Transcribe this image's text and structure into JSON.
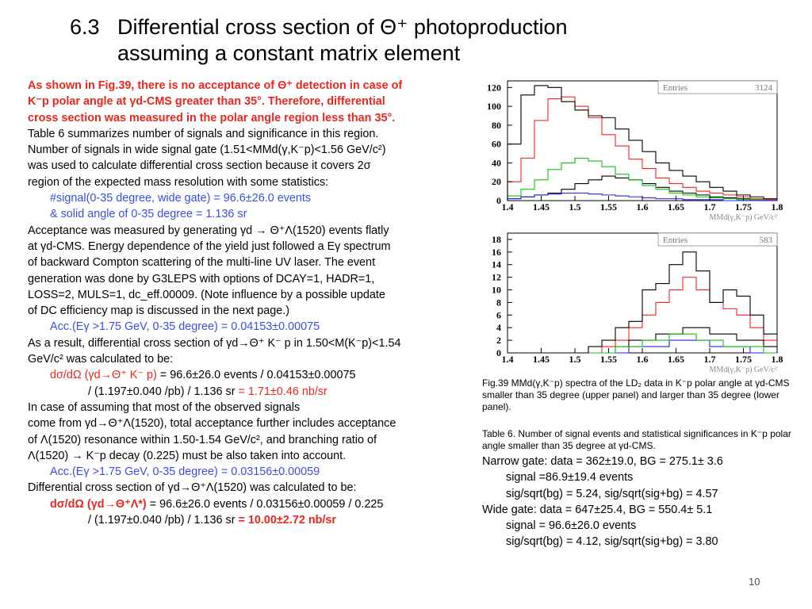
{
  "title": {
    "number": "6.3",
    "line1": "Differential cross section of Θ⁺ photoproduction",
    "line2": "assuming a constant matrix element"
  },
  "body": {
    "intro_red": [
      "As shown in Fig.39, there is no acceptance of Θ⁺ detection in case of",
      "K⁻p polar angle at γd-CMS greater than 35°. Therefore, differential",
      "cross section was measured in the polar angle region less than 35°."
    ],
    "para1": [
      "Table 6 summarizes number of signals and significance in this region.",
      "Number of signals in wide signal gate (1.51<MMd(γ,K⁻p)<1.56 GeV/c²)",
      "was used to calculate differential cross section because it covers 2σ",
      "region of the expected mass resolution with some statistics:"
    ],
    "signal_line": "#signal(0-35 degree, wide gate) = 96.6±26.0 events",
    "solid_angle_line": "& solid angle of 0-35 degree = 1.136 sr",
    "para2": [
      "Acceptance was measured by generating γd → Θ⁺Λ(1520) events flatly",
      "at γd-CMS. Energy dependence of the yield just followed  a Eγ spectrum",
      "of backward Compton scattering of the multi-line UV laser. The event",
      "generation was done by G3LEPS with options of DCAY=1, HADR=1,",
      "LOSS=2, MULS=1, dc_eff.00009. (Note influence by a possible update",
      "of DC efficiency map is discussed in the next page.)"
    ],
    "acc1": "Acc.(Eγ >1.75 GeV, 0-35 degree) = 0.04153±0.00075",
    "para3": [
      "As a result, differential cross section of γd→Θ⁺ K⁻ p in 1.50<M(K⁻p)<1.54",
      "GeV/c² was calculated to be:"
    ],
    "xs1_label": "dσ/dΩ (γd→Θ⁺ K⁻ p)",
    "xs1_mid": " = 96.6±26.0 events / 0.04153±0.00075",
    "xs1_line2": "/ (1.197±0.040 /pb) / 1.136 sr ",
    "xs1_result": "= 1.71±0.46 nb/sr",
    "para4": [
      "In case of assuming that most of the observed signals",
      "come from  γd→Θ⁺Λ(1520), total acceptance further includes acceptance",
      "of Λ(1520) resonance within 1.50-1.54 GeV/c², and branching ratio of",
      "Λ(1520) → K⁻p decay (0.225) must be also taken into account."
    ],
    "acc2": "Acc.(Eγ >1.75 GeV, 0-35 degree) = 0.03156±0.00059",
    "para5": "Differential cross section of γd→Θ⁺Λ(1520) was calculated to be:",
    "xs2_label": "dσ/dΩ (γd→Θ⁺Λ*)",
    "xs2_mid": " = 96.6±26.0 events / 0.03156±0.00059 / 0.225",
    "xs2_line2": "/ (1.197±0.040 /pb) / 1.136 sr ",
    "xs2_result": "= 10.00±2.72 nb/sr"
  },
  "figure_caption": "Fig.39 MMd(γ,K⁻p) spectra of the LD₂ data in K⁻p polar angle at γd-CMS smaller than 35 degree (upper panel) and larger than 35 degree (lower panel).",
  "table6": {
    "caption": "Table 6. Number of signal events and statistical significances in K⁻p polar angle smaller than 35 degree at γd-CMS.",
    "narrow": "Narrow gate: data = 362±19.0,  BG = 275.1± 3.6",
    "narrow_signal": "signal =86.9±19.4 events",
    "narrow_sig": "sig/sqrt(bg) = 5.24,  sig/sqrt(sig+bg) = 4.57",
    "wide": "Wide gate:    data = 647±25.4,  BG = 550.4± 5.1",
    "wide_signal": "signal = 96.6±26.0 events",
    "wide_sig": "sig/sqrt(bg) = 4.12,  sig/sqrt(sig+bg) = 3.80"
  },
  "page_number": "10",
  "colors": {
    "red": "#e8281e",
    "blue": "#3a4fe0",
    "green": "#10c010",
    "hist_red": "#ff2020",
    "hist_blue": "#2020ff"
  },
  "chart_data": [
    {
      "type": "line",
      "stats_label": "Entries",
      "entries": "3124",
      "xlabel": "MMd(γ,K⁻p) GeV/c²",
      "xlim": [
        1.4,
        1.8
      ],
      "ylim": [
        0,
        127
      ],
      "x_ticks": [
        "1.4",
        "1.45",
        "1.5",
        "1.55",
        "1.6",
        "1.65",
        "1.7",
        "1.75",
        "1.8"
      ],
      "y_ticks": [
        "0",
        "20",
        "40",
        "60",
        "80",
        "100",
        "120"
      ],
      "x": [
        1.41,
        1.43,
        1.45,
        1.47,
        1.49,
        1.51,
        1.53,
        1.55,
        1.57,
        1.59,
        1.61,
        1.63,
        1.65,
        1.67,
        1.69,
        1.71,
        1.73,
        1.75,
        1.77,
        1.79
      ],
      "series": [
        {
          "color": "black",
          "values": [
            2,
            4,
            6,
            8,
            12,
            18,
            22,
            26,
            24,
            22,
            18,
            14,
            10,
            8,
            6,
            4,
            3,
            2,
            1,
            1
          ]
        },
        {
          "color": "red",
          "values": [
            20,
            45,
            85,
            108,
            110,
            100,
            88,
            70,
            58,
            44,
            34,
            24,
            18,
            14,
            10,
            8,
            6,
            4,
            2,
            1
          ]
        },
        {
          "color": "green",
          "values": [
            5,
            12,
            22,
            33,
            40,
            45,
            42,
            36,
            28,
            22,
            16,
            12,
            8,
            6,
            4,
            3,
            2,
            1,
            1,
            0
          ]
        },
        {
          "color": "blue",
          "values": [
            2,
            4,
            6,
            7,
            8,
            8,
            7,
            6,
            5,
            4,
            3,
            2,
            2,
            1,
            1,
            1,
            0,
            0,
            0,
            0
          ]
        },
        {
          "color": "black",
          "values": [
            60,
            112,
            122,
            120,
            105,
            96,
            90,
            88,
            76,
            64,
            52,
            40,
            32,
            26,
            20,
            14,
            10,
            6,
            4,
            2
          ]
        }
      ]
    },
    {
      "type": "line",
      "stats_label": "Entries",
      "entries": "583",
      "xlabel": "MMd(γ,K⁻p) GeV/c²",
      "xlim": [
        1.4,
        1.8
      ],
      "ylim": [
        0,
        19
      ],
      "x_ticks": [
        "1.4",
        "1.45",
        "1.5",
        "1.55",
        "1.6",
        "1.65",
        "1.7",
        "1.75",
        "1.8"
      ],
      "y_ticks": [
        "0",
        "2",
        "4",
        "6",
        "8",
        "10",
        "12",
        "14",
        "16",
        "18"
      ],
      "x": [
        1.41,
        1.43,
        1.45,
        1.47,
        1.49,
        1.51,
        1.53,
        1.55,
        1.57,
        1.59,
        1.61,
        1.63,
        1.65,
        1.67,
        1.69,
        1.71,
        1.73,
        1.75,
        1.77,
        1.79
      ],
      "series": [
        {
          "color": "red",
          "values": [
            0,
            0,
            0,
            0,
            0,
            0,
            0,
            1,
            2,
            4,
            6,
            8,
            10,
            12,
            10,
            8,
            7,
            6,
            4,
            2
          ]
        },
        {
          "color": "black",
          "values": [
            0,
            0,
            0,
            0,
            0,
            0,
            0,
            0,
            1,
            2,
            2,
            3,
            3,
            4,
            4,
            3,
            3,
            2,
            2,
            1
          ]
        },
        {
          "color": "blue",
          "values": [
            0,
            0,
            0,
            0,
            0,
            0,
            0,
            0,
            0,
            1,
            1,
            1,
            2,
            2,
            2,
            1,
            1,
            1,
            0,
            0
          ]
        },
        {
          "color": "green",
          "values": [
            0,
            0,
            0,
            0,
            0,
            0,
            0,
            0,
            1,
            1,
            2,
            2,
            3,
            3,
            2,
            2,
            1,
            1,
            1,
            0
          ]
        },
        {
          "color": "black",
          "values": [
            0,
            0,
            0,
            0,
            0,
            0,
            1,
            2,
            4,
            5,
            10,
            11,
            14,
            16,
            13,
            8,
            10,
            9,
            6,
            3
          ]
        }
      ]
    }
  ]
}
